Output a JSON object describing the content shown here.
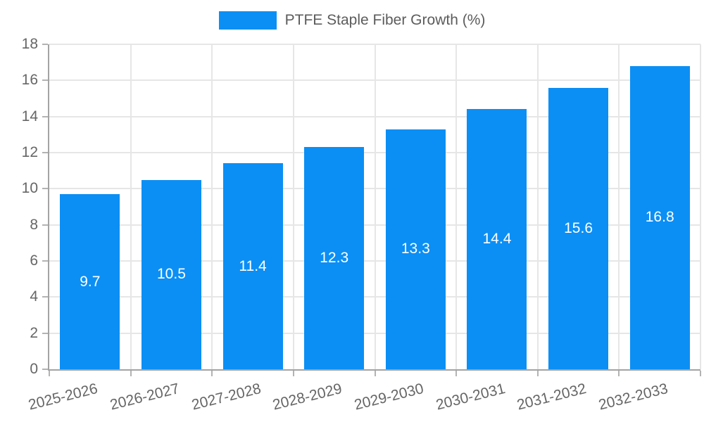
{
  "chart_data": {
    "type": "bar",
    "title": "PTFE Staple Fiber Growth (%)",
    "categories": [
      "2025-2026",
      "2026-2027",
      "2027-2028",
      "2028-2029",
      "2029-2030",
      "2030-2031",
      "2031-2032",
      "2032-2033"
    ],
    "values": [
      9.7,
      10.5,
      11.4,
      12.3,
      13.3,
      14.4,
      15.6,
      16.8
    ],
    "value_labels": [
      "9.7",
      "10.5",
      "11.4",
      "12.3",
      "13.3",
      "14.4",
      "15.6",
      "16.8"
    ],
    "yticks": [
      0,
      2,
      4,
      6,
      8,
      10,
      12,
      14,
      16,
      18
    ],
    "ylim": [
      0,
      18
    ],
    "xlabel": "",
    "ylabel": "",
    "grid": true,
    "legend_position": "top-center",
    "colors": {
      "bar": "#0b8ff5",
      "value_label": "#ffffff",
      "axis_line": "#a3a3a3",
      "gridline": "#e6e6e6",
      "tick_label": "#666666",
      "legend_text": "#5c5c5c",
      "background": "#ffffff"
    }
  }
}
